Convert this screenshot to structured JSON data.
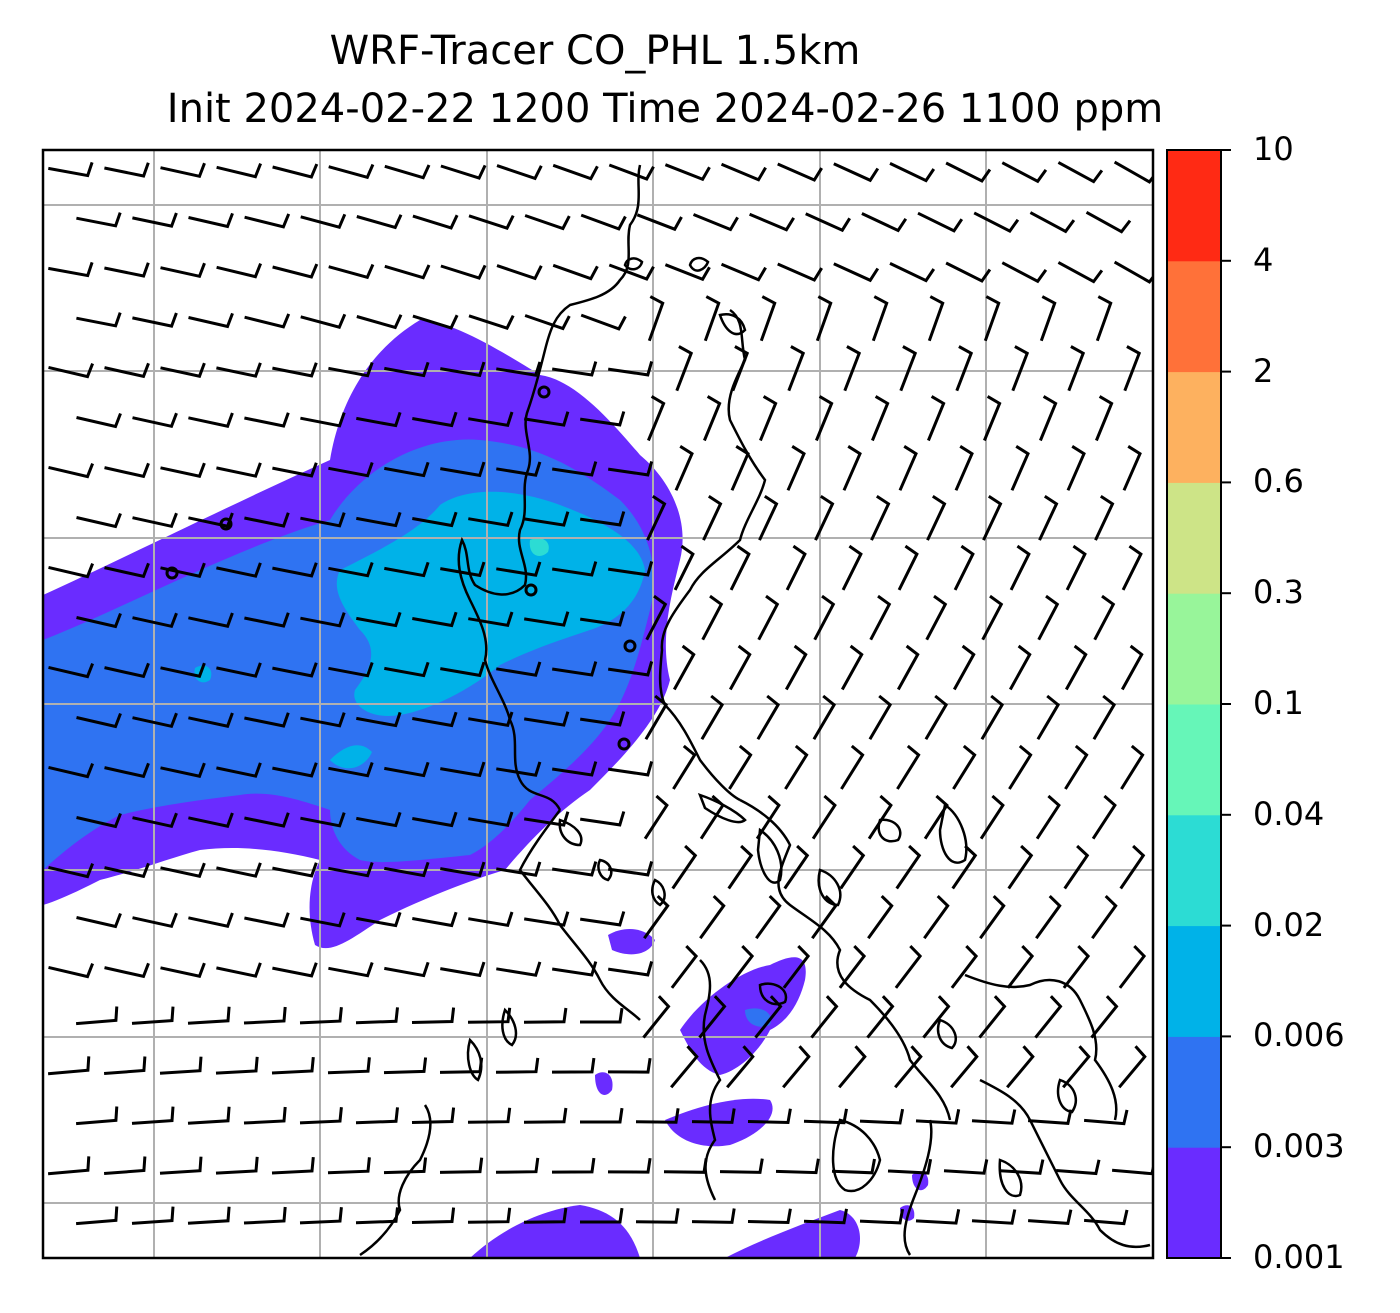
{
  "title": {
    "line1": "WRF-Tracer CO_PHL 1.5km",
    "line2": "Init 2024-02-22 1200 Time 2024-02-26 1100 ppm"
  },
  "colorbar": {
    "levels": [
      "0.001",
      "0.003",
      "0.006",
      "0.02",
      "0.04",
      "0.1",
      "0.3",
      "0.6",
      "2",
      "4",
      "10"
    ],
    "colors": [
      "#6a2cff",
      "#2f73f2",
      "#00b2e8",
      "#2cdcd4",
      "#66f6b8",
      "#98f59a",
      "#cde487",
      "#fdb15f",
      "#ff7139",
      "#ff2a14"
    ]
  },
  "map": {
    "gridline_color": "#b0b0b0",
    "coastline_color": "#000000",
    "barb_color": "#000000"
  }
}
